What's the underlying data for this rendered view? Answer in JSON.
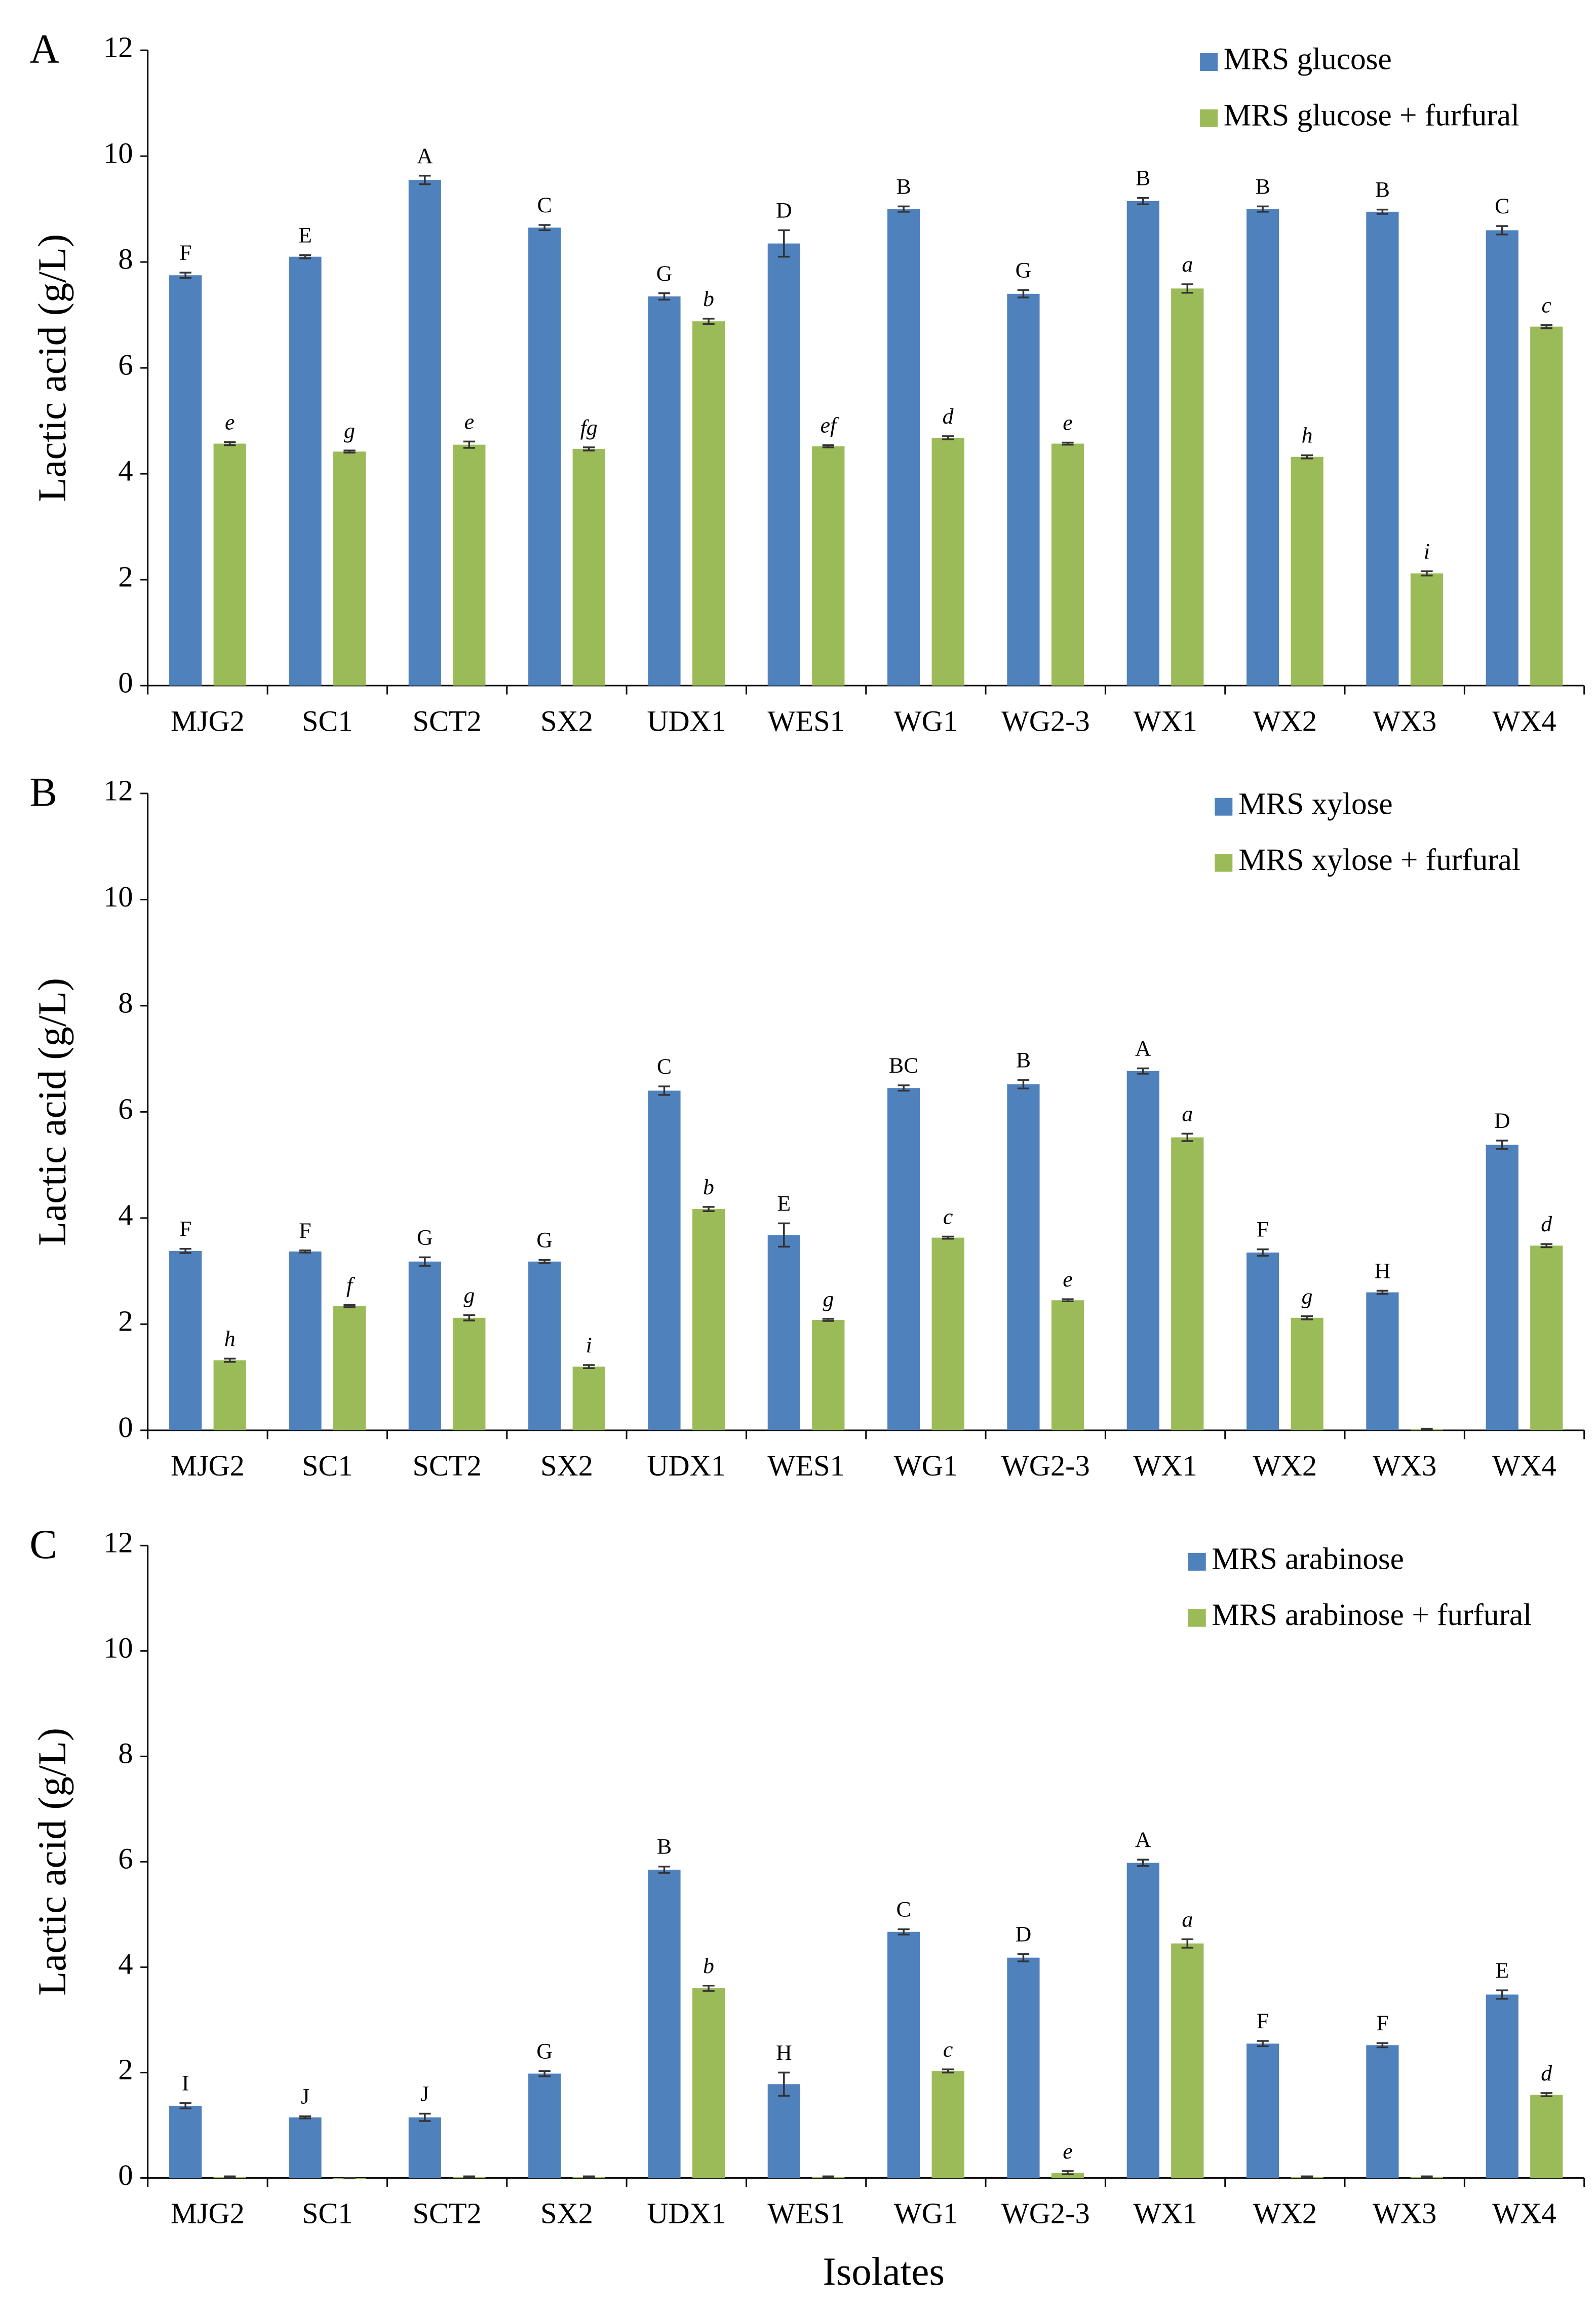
{
  "chart_data": [
    {
      "type": "bar",
      "panel_label": "A",
      "ylabel": "Lactic acid (g/L)",
      "categories": [
        "MJG2",
        "SC1",
        "SCT2",
        "SX2",
        "UDX1",
        "WES1",
        "WG1",
        "WG2-3",
        "WX1",
        "WX2",
        "WX3",
        "WX4"
      ],
      "ylim": [
        0,
        12
      ],
      "yticks": [
        0,
        2,
        4,
        6,
        8,
        10,
        12
      ],
      "legend": "upper right",
      "series": [
        {
          "name": "MRS glucose",
          "color": "#4f81bd",
          "values": [
            7.75,
            8.1,
            9.55,
            8.65,
            7.35,
            8.35,
            9.0,
            7.4,
            9.15,
            9.0,
            8.95,
            8.6
          ],
          "errors": [
            0.05,
            0.03,
            0.08,
            0.05,
            0.06,
            0.25,
            0.05,
            0.07,
            0.06,
            0.05,
            0.04,
            0.08
          ],
          "letters": [
            "F",
            "E",
            "A",
            "C",
            "G",
            "D",
            "B",
            "G",
            "B",
            "B",
            "B",
            "C"
          ]
        },
        {
          "name": "MRS glucose + furfural",
          "color": "#9bbb59",
          "values": [
            4.57,
            4.42,
            4.55,
            4.47,
            6.88,
            4.52,
            4.68,
            4.57,
            7.5,
            4.32,
            2.12,
            6.78
          ],
          "errors": [
            0.03,
            0.02,
            0.06,
            0.03,
            0.05,
            0.02,
            0.03,
            0.02,
            0.08,
            0.03,
            0.04,
            0.03
          ],
          "letters": [
            "e",
            "g",
            "e",
            "fg",
            "b",
            "ef",
            "d",
            "e",
            "a",
            "h",
            "i",
            "c"
          ]
        }
      ]
    },
    {
      "type": "bar",
      "panel_label": "B",
      "ylabel": "Lactic acid (g/L)",
      "categories": [
        "MJG2",
        "SC1",
        "SCT2",
        "SX2",
        "UDX1",
        "WES1",
        "WG1",
        "WG2-3",
        "WX1",
        "WX2",
        "WX3",
        "WX4"
      ],
      "ylim": [
        0,
        12
      ],
      "yticks": [
        0,
        2,
        4,
        6,
        8,
        10,
        12
      ],
      "legend": "upper right",
      "series": [
        {
          "name": "MRS xylose",
          "color": "#4f81bd",
          "values": [
            3.38,
            3.37,
            3.18,
            3.18,
            6.4,
            3.68,
            6.45,
            6.52,
            6.77,
            3.35,
            2.6,
            5.38
          ],
          "errors": [
            0.04,
            0.02,
            0.08,
            0.03,
            0.08,
            0.22,
            0.05,
            0.08,
            0.05,
            0.06,
            0.03,
            0.08
          ],
          "letters": [
            "F",
            "F",
            "G",
            "G",
            "C",
            "E",
            "BC",
            "B",
            "A",
            "F",
            "H",
            "D"
          ]
        },
        {
          "name": "MRS xylose + furfural",
          "color": "#9bbb59",
          "values": [
            1.32,
            2.34,
            2.12,
            1.2,
            4.17,
            2.08,
            3.63,
            2.45,
            5.52,
            2.12,
            0.02,
            3.48
          ],
          "errors": [
            0.03,
            0.02,
            0.05,
            0.03,
            0.04,
            0.02,
            0.02,
            0.02,
            0.07,
            0.03,
            0.01,
            0.03
          ],
          "letters": [
            "h",
            "f",
            "g",
            "i",
            "b",
            "g",
            "c",
            "e",
            "a",
            "g",
            null,
            "d"
          ]
        }
      ]
    },
    {
      "type": "bar",
      "panel_label": "C",
      "ylabel": "Lactic acid (g/L)",
      "xlabel": "Isolates",
      "categories": [
        "MJG2",
        "SC1",
        "SCT2",
        "SX2",
        "UDX1",
        "WES1",
        "WG1",
        "WG2-3",
        "WX1",
        "WX2",
        "WX3",
        "WX4"
      ],
      "ylim": [
        0,
        12
      ],
      "yticks": [
        0,
        2,
        4,
        6,
        8,
        10,
        12
      ],
      "legend": "upper right",
      "series": [
        {
          "name": "MRS arabinose",
          "color": "#4f81bd",
          "values": [
            1.37,
            1.15,
            1.15,
            1.98,
            5.85,
            1.78,
            4.67,
            4.18,
            5.98,
            2.55,
            2.52,
            3.48
          ],
          "errors": [
            0.05,
            0.02,
            0.07,
            0.05,
            0.06,
            0.22,
            0.05,
            0.07,
            0.06,
            0.05,
            0.04,
            0.08
          ],
          "letters": [
            "I",
            "J",
            "J",
            "G",
            "B",
            "H",
            "C",
            "D",
            "A",
            "F",
            "F",
            "E"
          ]
        },
        {
          "name": "MRS arabinose + furfural",
          "color": "#9bbb59",
          "values": [
            0.02,
            0,
            0.02,
            0.02,
            3.6,
            0.02,
            2.03,
            0.1,
            4.45,
            0.02,
            0.02,
            1.58
          ],
          "errors": [
            0.01,
            0,
            0.01,
            0.01,
            0.05,
            0.01,
            0.03,
            0.03,
            0.08,
            0.01,
            0.01,
            0.03
          ],
          "letters": [
            null,
            null,
            null,
            null,
            "b",
            null,
            "c",
            "e",
            "a",
            null,
            null,
            "d"
          ]
        }
      ]
    }
  ]
}
